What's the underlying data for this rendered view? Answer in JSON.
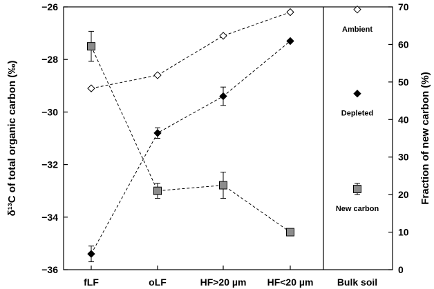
{
  "chart_data": {
    "type": "line",
    "categories": [
      "fLF",
      "oLF",
      "HF>20 µm",
      "HF<20 µm"
    ],
    "bulk_label": "Bulk soil",
    "left_axis": {
      "label": "δ¹³C of total organic carbon (‰)",
      "ylim": [
        -36,
        -26
      ],
      "ticks": [
        "−36",
        "−34",
        "−32",
        "−30",
        "−28",
        "−26"
      ],
      "tick_values": [
        -36,
        -34,
        -32,
        -30,
        -28,
        -26
      ]
    },
    "right_axis": {
      "label": "Fraction of new carbon (%)",
      "ylim": [
        0,
        70
      ],
      "ticks": [
        "0",
        "10",
        "20",
        "30",
        "40",
        "50",
        "60",
        "70"
      ],
      "tick_values": [
        0,
        10,
        20,
        30,
        40,
        50,
        60,
        70
      ]
    },
    "series": [
      {
        "name": "Ambient",
        "axis": "left",
        "marker": "open-diamond",
        "values": [
          -29.1,
          -28.6,
          -27.1,
          -26.2
        ],
        "errors": [
          0,
          0,
          0,
          0
        ],
        "bulk": -26.1
      },
      {
        "name": "Depleted",
        "axis": "left",
        "marker": "filled-diamond",
        "values": [
          -35.4,
          -30.8,
          -29.4,
          -27.3
        ],
        "errors": [
          0.3,
          0.2,
          0.35,
          0
        ],
        "bulk": -29.3
      },
      {
        "name": "New carbon",
        "axis": "right",
        "marker": "square",
        "values": [
          59.5,
          21.0,
          22.5,
          10.0
        ],
        "errors": [
          4.0,
          2.0,
          3.5,
          0
        ],
        "bulk": 21.5,
        "bulk_error": 1.5
      }
    ],
    "colors": {
      "square_fill": "#8c8c8c",
      "marker_stroke": "#000000"
    }
  }
}
